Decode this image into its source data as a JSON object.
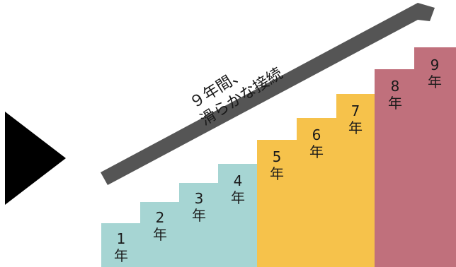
{
  "diagram": {
    "arrow_caption": {
      "line1": "９年間、",
      "line2": "滑らかな接続"
    },
    "steps": [
      {
        "number": "1",
        "unit": "年",
        "group": "teal"
      },
      {
        "number": "2",
        "unit": "年",
        "group": "teal"
      },
      {
        "number": "3",
        "unit": "年",
        "group": "teal"
      },
      {
        "number": "4",
        "unit": "年",
        "group": "teal"
      },
      {
        "number": "5",
        "unit": "年",
        "group": "yellow"
      },
      {
        "number": "6",
        "unit": "年",
        "group": "yellow"
      },
      {
        "number": "7",
        "unit": "年",
        "group": "yellow"
      },
      {
        "number": "8",
        "unit": "年",
        "group": "rose"
      },
      {
        "number": "9",
        "unit": "年",
        "group": "rose"
      }
    ],
    "colors": {
      "teal": "#a6d5d3",
      "yellow": "#f6c24b",
      "rose": "#c0707c",
      "arrow": "#555555",
      "triangle": "#000000"
    }
  }
}
